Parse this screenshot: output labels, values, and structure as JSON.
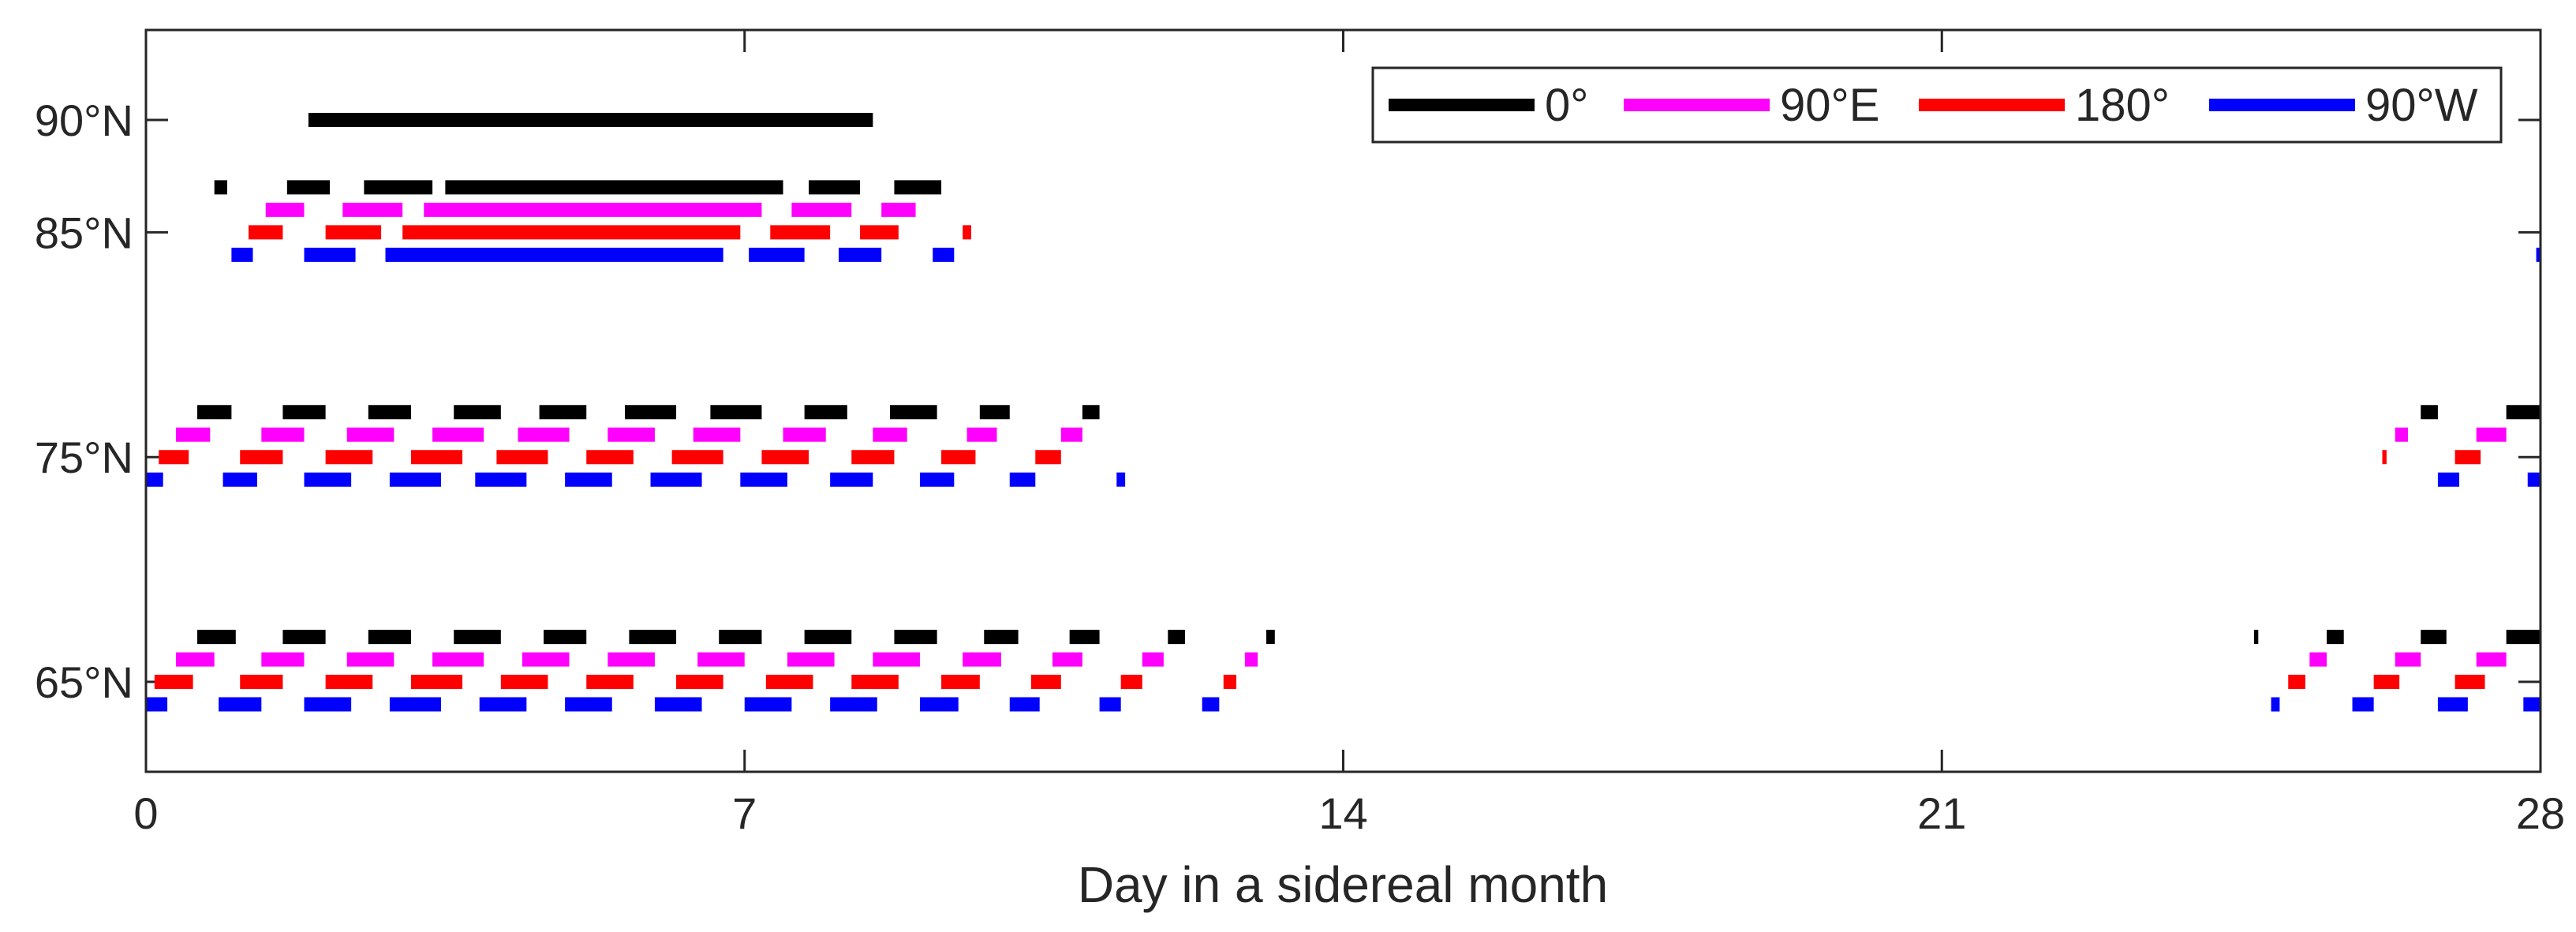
{
  "chart_data": {
    "type": "timeline",
    "title": "",
    "xlabel": "Day in a sidereal month",
    "ylabel": "",
    "xlim": [
      0,
      28
    ],
    "x_ticks": [
      0,
      7,
      14,
      21,
      28
    ],
    "x_tick_labels": [
      "0",
      "7",
      "14",
      "21",
      "28"
    ],
    "ylim": [
      61,
      94
    ],
    "y_ticks": [
      65,
      75,
      85,
      90
    ],
    "y_tick_labels": [
      "65°N",
      "75°N",
      "85°N",
      "90°N"
    ],
    "legend_position": "top-right",
    "series": [
      {
        "name": "0°",
        "color": "#000000",
        "rows": [
          {
            "y": 90,
            "segments": [
              [
                1.9,
                8.5
              ]
            ]
          },
          {
            "y": 87,
            "segments": [
              [
                0.8,
                0.95
              ],
              [
                1.65,
                2.15
              ],
              [
                2.55,
                3.35
              ],
              [
                3.5,
                7.45
              ],
              [
                7.75,
                8.35
              ],
              [
                8.75,
                9.3
              ]
            ]
          },
          {
            "y": 77,
            "segments": [
              [
                0.6,
                1.0
              ],
              [
                1.6,
                2.1
              ],
              [
                2.6,
                3.1
              ],
              [
                3.6,
                4.15
              ],
              [
                4.6,
                5.15
              ],
              [
                5.6,
                6.2
              ],
              [
                6.6,
                7.2
              ],
              [
                7.7,
                8.2
              ],
              [
                8.7,
                9.25
              ],
              [
                9.75,
                10.1
              ],
              [
                10.95,
                11.15
              ],
              [
                26.6,
                26.8
              ],
              [
                27.6,
                28.0
              ]
            ]
          },
          {
            "y": 67,
            "segments": [
              [
                0.6,
                1.05
              ],
              [
                1.6,
                2.1
              ],
              [
                2.6,
                3.1
              ],
              [
                3.6,
                4.15
              ],
              [
                4.65,
                5.15
              ],
              [
                5.65,
                6.2
              ],
              [
                6.7,
                7.2
              ],
              [
                7.7,
                8.25
              ],
              [
                8.75,
                9.25
              ],
              [
                9.8,
                10.2
              ],
              [
                10.8,
                11.15
              ],
              [
                11.95,
                12.15
              ],
              [
                13.1,
                13.2
              ],
              [
                24.65,
                24.7
              ],
              [
                25.5,
                25.7
              ],
              [
                26.6,
                26.9
              ],
              [
                27.6,
                28.0
              ]
            ]
          }
        ]
      },
      {
        "name": "90°E",
        "color": "#ff00ff",
        "rows": [
          {
            "y": 86,
            "segments": [
              [
                1.4,
                1.85
              ],
              [
                2.3,
                3.0
              ],
              [
                3.25,
                7.2
              ],
              [
                7.55,
                8.25
              ],
              [
                8.6,
                9.0
              ]
            ]
          },
          {
            "y": 76,
            "segments": [
              [
                0.35,
                0.75
              ],
              [
                1.35,
                1.85
              ],
              [
                2.35,
                2.9
              ],
              [
                3.35,
                3.95
              ],
              [
                4.35,
                4.95
              ],
              [
                5.4,
                5.95
              ],
              [
                6.4,
                6.95
              ],
              [
                7.45,
                7.95
              ],
              [
                8.5,
                8.9
              ],
              [
                9.6,
                9.95
              ],
              [
                10.7,
                10.95
              ],
              [
                26.3,
                26.45
              ],
              [
                27.25,
                27.6
              ]
            ]
          },
          {
            "y": 66,
            "segments": [
              [
                0.35,
                0.8
              ],
              [
                1.35,
                1.85
              ],
              [
                2.35,
                2.9
              ],
              [
                3.35,
                3.95
              ],
              [
                4.4,
                4.95
              ],
              [
                5.4,
                5.95
              ],
              [
                6.45,
                7.0
              ],
              [
                7.5,
                8.05
              ],
              [
                8.5,
                9.05
              ],
              [
                9.55,
                10.0
              ],
              [
                10.6,
                10.95
              ],
              [
                11.65,
                11.9
              ],
              [
                12.85,
                13.0
              ],
              [
                25.3,
                25.5
              ],
              [
                26.3,
                26.6
              ],
              [
                27.25,
                27.6
              ]
            ]
          }
        ]
      },
      {
        "name": "180°",
        "color": "#ff0000",
        "rows": [
          {
            "y": 85,
            "segments": [
              [
                1.2,
                1.6
              ],
              [
                2.1,
                2.75
              ],
              [
                3.0,
                6.95
              ],
              [
                7.3,
                8.0
              ],
              [
                8.35,
                8.8
              ],
              [
                9.55,
                9.65
              ]
            ]
          },
          {
            "y": 75,
            "segments": [
              [
                0.15,
                0.5
              ],
              [
                1.1,
                1.6
              ],
              [
                2.1,
                2.65
              ],
              [
                3.1,
                3.7
              ],
              [
                4.1,
                4.7
              ],
              [
                5.15,
                5.7
              ],
              [
                6.15,
                6.75
              ],
              [
                7.2,
                7.75
              ],
              [
                8.25,
                8.75
              ],
              [
                9.3,
                9.7
              ],
              [
                10.4,
                10.7
              ],
              [
                26.15,
                26.2
              ],
              [
                27.0,
                27.3
              ]
            ]
          },
          {
            "y": 65,
            "segments": [
              [
                0.1,
                0.55
              ],
              [
                1.1,
                1.6
              ],
              [
                2.1,
                2.65
              ],
              [
                3.1,
                3.7
              ],
              [
                4.15,
                4.7
              ],
              [
                5.15,
                5.7
              ],
              [
                6.2,
                6.75
              ],
              [
                7.25,
                7.8
              ],
              [
                8.25,
                8.8
              ],
              [
                9.3,
                9.75
              ],
              [
                10.35,
                10.7
              ],
              [
                11.4,
                11.65
              ],
              [
                12.6,
                12.75
              ],
              [
                25.05,
                25.25
              ],
              [
                26.05,
                26.35
              ],
              [
                27.0,
                27.35
              ]
            ]
          }
        ]
      },
      {
        "name": "90°W",
        "color": "#0000ff",
        "rows": [
          {
            "y": 84,
            "segments": [
              [
                1.0,
                1.25
              ],
              [
                1.85,
                2.45
              ],
              [
                2.8,
                6.75
              ],
              [
                7.05,
                7.7
              ],
              [
                8.1,
                8.6
              ],
              [
                9.2,
                9.45
              ],
              [
                27.95,
                28.0
              ]
            ]
          },
          {
            "y": 74,
            "segments": [
              [
                0.0,
                0.2
              ],
              [
                0.9,
                1.3
              ],
              [
                1.85,
                2.4
              ],
              [
                2.85,
                3.45
              ],
              [
                3.85,
                4.45
              ],
              [
                4.9,
                5.45
              ],
              [
                5.9,
                6.5
              ],
              [
                6.95,
                7.5
              ],
              [
                8.0,
                8.5
              ],
              [
                9.05,
                9.45
              ],
              [
                10.1,
                10.4
              ],
              [
                11.35,
                11.45
              ],
              [
                26.8,
                27.05
              ],
              [
                27.85,
                28.0
              ]
            ]
          },
          {
            "y": 64,
            "segments": [
              [
                0.0,
                0.25
              ],
              [
                0.85,
                1.35
              ],
              [
                1.85,
                2.4
              ],
              [
                2.85,
                3.45
              ],
              [
                3.9,
                4.45
              ],
              [
                4.9,
                5.45
              ],
              [
                5.95,
                6.5
              ],
              [
                7.0,
                7.55
              ],
              [
                8.0,
                8.55
              ],
              [
                9.05,
                9.5
              ],
              [
                10.1,
                10.45
              ],
              [
                11.15,
                11.4
              ],
              [
                12.35,
                12.55
              ],
              [
                24.85,
                24.95
              ],
              [
                25.8,
                26.05
              ],
              [
                26.8,
                27.15
              ],
              [
                27.8,
                28.0
              ]
            ]
          }
        ]
      }
    ]
  }
}
